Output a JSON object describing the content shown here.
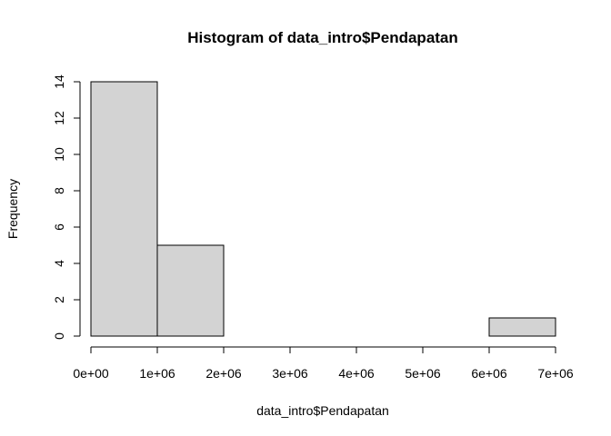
{
  "chart_data": {
    "type": "bar",
    "title": "Histogram of data_intro$Pendapatan",
    "xlabel": "data_intro$Pendapatan",
    "ylabel": "Frequency",
    "bins": [
      {
        "start": 0,
        "end": 1000000,
        "count": 14
      },
      {
        "start": 1000000,
        "end": 2000000,
        "count": 5
      },
      {
        "start": 2000000,
        "end": 3000000,
        "count": 0
      },
      {
        "start": 3000000,
        "end": 4000000,
        "count": 0
      },
      {
        "start": 4000000,
        "end": 5000000,
        "count": 0
      },
      {
        "start": 5000000,
        "end": 6000000,
        "count": 0
      },
      {
        "start": 6000000,
        "end": 7000000,
        "count": 1
      }
    ],
    "xlim": [
      0,
      7000000
    ],
    "ylim": [
      0,
      14
    ],
    "x_ticks": [
      0,
      1000000,
      2000000,
      3000000,
      4000000,
      5000000,
      6000000,
      7000000
    ],
    "x_tick_labels": [
      "0e+00",
      "1e+06",
      "2e+06",
      "3e+06",
      "4e+06",
      "5e+06",
      "6e+06",
      "7e+06"
    ],
    "y_ticks": [
      0,
      2,
      4,
      6,
      8,
      10,
      12,
      14
    ],
    "y_tick_labels": [
      "0",
      "2",
      "4",
      "6",
      "8",
      "10",
      "12",
      "14"
    ],
    "bar_fill": "#d3d3d3",
    "bar_stroke": "#000000",
    "grid": false
  }
}
